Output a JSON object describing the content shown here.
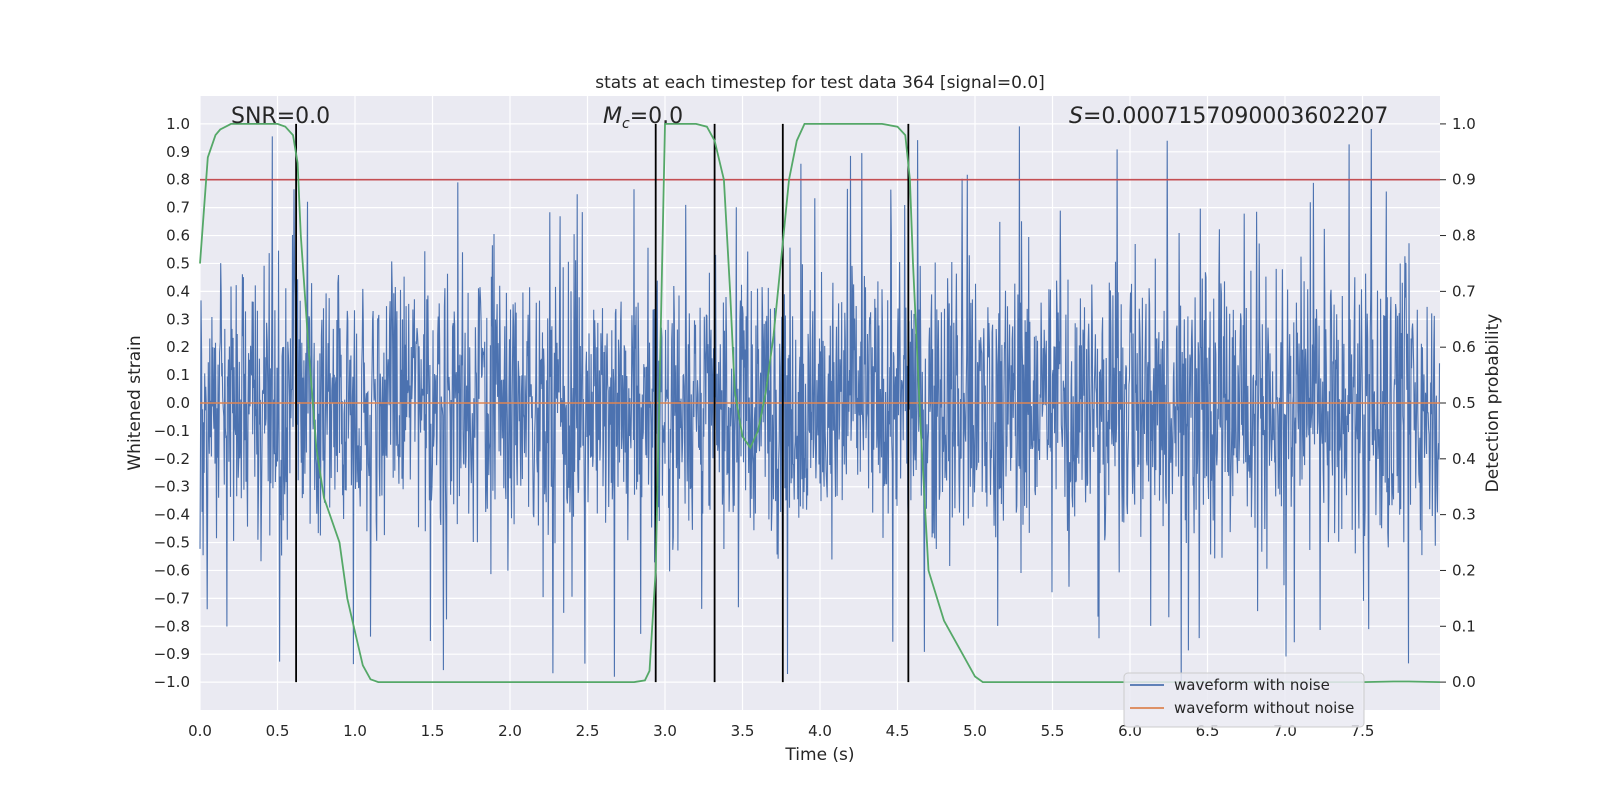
{
  "chart_data": {
    "type": "line",
    "title": "stats at each timestep for test data 364 [signal=0.0]",
    "xlabel": "Time (s)",
    "ylabel_left": "Whitened strain",
    "ylabel_right": "Detection probability",
    "xlim": [
      0.0,
      8.0
    ],
    "ylim_left": [
      -1.1,
      1.1
    ],
    "ylim_right": [
      -0.05,
      1.05
    ],
    "x_ticks": [
      "0.0",
      "0.5",
      "1.0",
      "1.5",
      "2.0",
      "2.5",
      "3.0",
      "3.5",
      "4.0",
      "4.5",
      "5.0",
      "5.5",
      "6.0",
      "6.5",
      "7.0",
      "7.5"
    ],
    "left_ticks": [
      "1.0",
      "0.9",
      "0.8",
      "0.7",
      "0.6",
      "0.5",
      "0.4",
      "0.3",
      "0.2",
      "0.1",
      "0.0",
      "-0.1",
      "-0.2",
      "-0.3",
      "-0.4",
      "-0.5",
      "-0.6",
      "-0.7",
      "-0.8",
      "-0.9",
      "-1.0"
    ],
    "right_ticks": [
      "1.0",
      "0.9",
      "0.8",
      "0.7",
      "0.6",
      "0.5",
      "0.4",
      "0.3",
      "0.2",
      "0.1",
      "0.0"
    ],
    "annotations": {
      "snr": "SNR=0.0",
      "mc_symbol": "M",
      "mc_sub": "c",
      "mc_value": "=0.0",
      "s_symbol": "S",
      "s_value": "=0.0007157090003602207"
    },
    "series": [
      {
        "name": "waveform with noise",
        "color": "#4c72b0",
        "kind": "noise",
        "amplitude_typical": 0.45,
        "amplitude_peak": 1.0
      },
      {
        "name": "waveform without noise",
        "color": "#dd8452",
        "kind": "constant",
        "value": 0.0
      },
      {
        "name": "detection probability",
        "color": "#55a868",
        "axis": "right",
        "x": [
          0.0,
          0.05,
          0.1,
          0.13,
          0.2,
          0.3,
          0.4,
          0.5,
          0.55,
          0.6,
          0.63,
          0.65,
          0.7,
          0.75,
          0.8,
          0.9,
          0.95,
          1.0,
          1.05,
          1.1,
          1.15,
          1.5,
          2.0,
          2.5,
          2.8,
          2.87,
          2.9,
          2.94,
          2.97,
          3.0,
          3.1,
          3.2,
          3.27,
          3.32,
          3.38,
          3.42,
          3.45,
          3.5,
          3.55,
          3.6,
          3.65,
          3.7,
          3.75,
          3.8,
          3.85,
          3.9,
          4.0,
          4.2,
          4.4,
          4.5,
          4.55,
          4.58,
          4.6,
          4.65,
          4.7,
          4.8,
          4.9,
          5.0,
          5.05,
          5.2,
          5.5,
          6.0,
          6.5,
          7.0,
          7.5,
          7.7,
          7.8,
          8.0
        ],
        "y": [
          0.75,
          0.94,
          0.98,
          0.99,
          1.0,
          1.0,
          1.0,
          1.0,
          0.995,
          0.98,
          0.93,
          0.8,
          0.6,
          0.42,
          0.33,
          0.25,
          0.15,
          0.09,
          0.03,
          0.005,
          0.0,
          0.0,
          0.0,
          0.0,
          0.0,
          0.003,
          0.02,
          0.2,
          0.6,
          1.0,
          1.0,
          1.0,
          0.995,
          0.97,
          0.9,
          0.7,
          0.52,
          0.44,
          0.42,
          0.45,
          0.52,
          0.62,
          0.76,
          0.9,
          0.97,
          1.0,
          1.0,
          1.0,
          1.0,
          0.995,
          0.98,
          0.9,
          0.75,
          0.45,
          0.2,
          0.11,
          0.06,
          0.01,
          0.0,
          0.0,
          0.0,
          0.0,
          0.0,
          0.0,
          0.0,
          0.001,
          0.001,
          0.0
        ]
      },
      {
        "name": "threshold",
        "color": "#c44e52",
        "axis": "right",
        "kind": "hline",
        "value": 0.9
      },
      {
        "name": "boundaries",
        "color": "#000000",
        "kind": "vlines",
        "x": [
          0.62,
          2.94,
          3.32,
          3.76,
          4.57
        ]
      }
    ],
    "legend": {
      "placement": "lower-right",
      "entries": [
        "waveform with noise",
        "waveform without noise"
      ]
    }
  }
}
